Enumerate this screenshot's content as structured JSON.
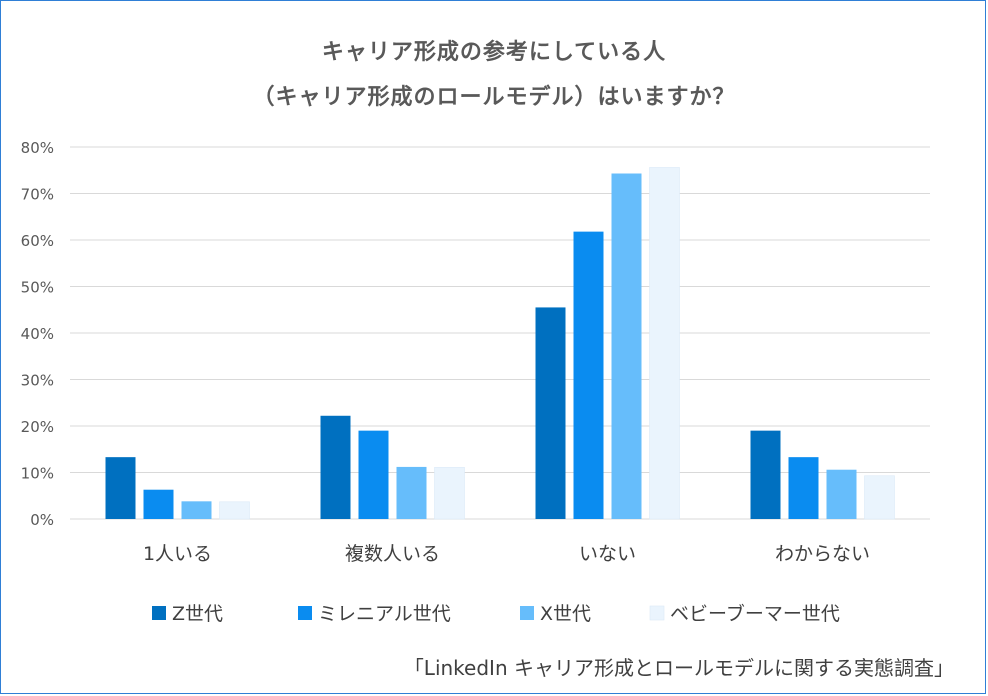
{
  "chart_data": {
    "type": "bar",
    "title_lines": [
      "キャリア形成の参考にしている人",
      "（キャリア形成のロールモデル）はいますか？"
    ],
    "categories": [
      "1人いる",
      "複数人いる",
      "いない",
      "わからない"
    ],
    "series": [
      {
        "name": "Z世代",
        "color": "#0070c0",
        "values": [
          13.3,
          22.2,
          45.5,
          19.0
        ]
      },
      {
        "name": "ミレニアル世代",
        "color": "#0a8cf0",
        "values": [
          6.3,
          19.0,
          61.8,
          13.3
        ]
      },
      {
        "name": "X世代",
        "color": "#66bdfb",
        "values": [
          3.8,
          11.2,
          74.3,
          10.6
        ]
      },
      {
        "name": "ベビーブーマー世代",
        "color": "#eaf4fd",
        "values": [
          3.7,
          11.1,
          75.6,
          9.3
        ]
      }
    ],
    "ylim": [
      0,
      80
    ],
    "yticks": [
      "0%",
      "10%",
      "20%",
      "30%",
      "40%",
      "50%",
      "60%",
      "70%",
      "80%"
    ],
    "grid": true,
    "legend": "bottom"
  },
  "source": "「LinkedIn キャリア形成とロールモデルに関する実態調査」"
}
